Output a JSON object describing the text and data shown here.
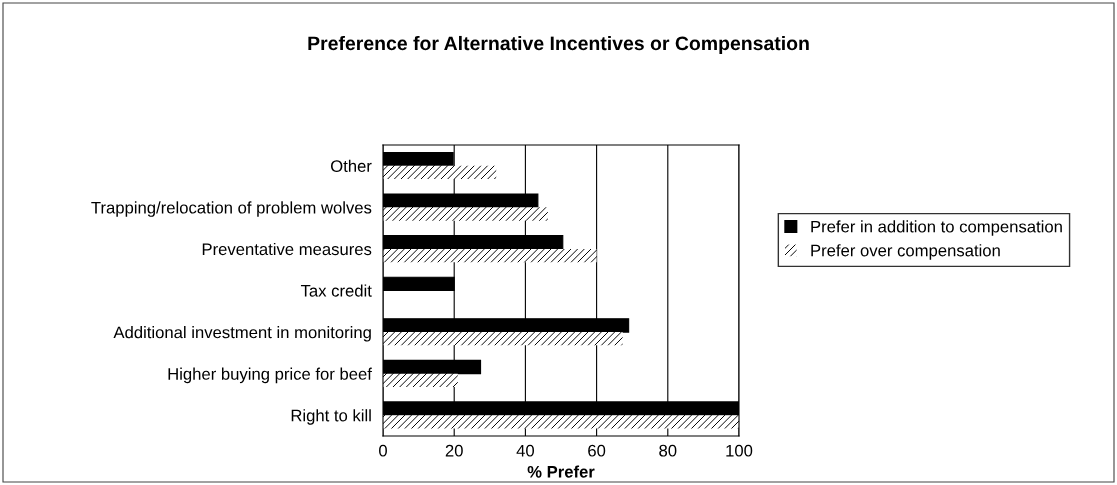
{
  "chart_data": {
    "type": "bar",
    "orientation": "horizontal",
    "title": "Preference for Alternative Incentives or Compensation",
    "xlabel": "% Prefer",
    "categories": [
      "Other",
      "Trapping/relocation of problem wolves",
      "Preventative measures",
      "Tax credit",
      "Additional investment in monitoring",
      "Higher buying price for beef",
      "Right to kill"
    ],
    "series": [
      {
        "name": "Prefer in addition to compensation",
        "color": "#000000",
        "values": [
          19.7,
          43.5,
          50.5,
          20,
          69,
          27.4,
          100
        ]
      },
      {
        "name": "Prefer over compensation",
        "color": "#ffffff",
        "values": [
          31.8,
          46.3,
          60,
          null,
          67.3,
          21,
          100
        ]
      }
    ],
    "xlim": [
      0,
      100
    ],
    "xticks": [
      0,
      20,
      40,
      60,
      80,
      100
    ],
    "grid": "x",
    "legend": "right"
  }
}
